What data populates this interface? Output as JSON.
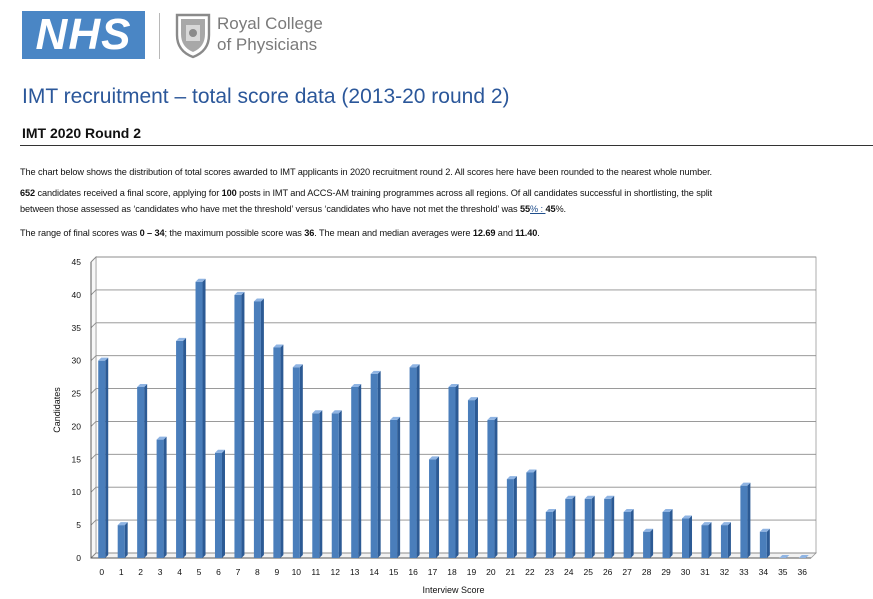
{
  "header": {
    "nhs_logo": "NHS",
    "college_name_line1": "Royal College",
    "college_name_line2": "of Physicians"
  },
  "page_title": "IMT recruitment – total score data (2013-20 round 2)",
  "section_title": "IMT 2020 Round 2",
  "paragraphs": {
    "p1": "The chart below shows the distribution of total scores awarded to IMT applicants in 2020 recruitment round 2.  All scores here have been rounded to the nearest whole number.",
    "p2_candidates": "652",
    "p2_text_a": " candidates received a final score, applying for ",
    "p2_posts": "100",
    "p2_text_b": " posts in IMT and ACCS-AM training programmes across all regions. Of all candidates successful in shortlisting, the split",
    "p2_line2_text": "between those assessed as ‘candidates who have met the threshold’ versus ‘candidates who have not met the threshold’ was ",
    "p2_split_a": "55",
    "p2_split_mid": "% : ",
    "p2_split_b": "45",
    "p2_split_end": "%.",
    "p3_text_a": "The range of final scores was ",
    "p3_range": "0 – 34",
    "p3_text_b": "; the maximum possible score was ",
    "p3_max": "36",
    "p3_text_c": ". The mean and median averages were ",
    "p3_mean": "12.69",
    "p3_text_d": " and ",
    "p3_median": "11.40",
    "p3_text_e": "."
  },
  "chart_data": {
    "type": "bar",
    "xlabel": "Interview Score",
    "ylabel": "Candidates",
    "ylim": [
      0,
      45
    ],
    "yticks": [
      0,
      5,
      10,
      15,
      20,
      25,
      30,
      35,
      40,
      45
    ],
    "grid": true,
    "categories": [
      "0",
      "1",
      "2",
      "3",
      "4",
      "5",
      "6",
      "7",
      "8",
      "9",
      "10",
      "11",
      "12",
      "13",
      "14",
      "15",
      "16",
      "17",
      "18",
      "19",
      "20",
      "21",
      "22",
      "23",
      "24",
      "25",
      "26",
      "27",
      "28",
      "29",
      "30",
      "31",
      "32",
      "33",
      "34",
      "35",
      "36"
    ],
    "values": [
      30,
      5,
      26,
      18,
      33,
      42,
      16,
      40,
      39,
      32,
      29,
      22,
      22,
      26,
      28,
      21,
      29,
      15,
      26,
      24,
      21,
      12,
      13,
      7,
      9,
      9,
      9,
      7,
      4,
      7,
      6,
      5,
      5,
      11,
      4,
      0,
      0
    ],
    "colors": {
      "bar": "#4a7ebb",
      "bar_dark": "#2c5a94",
      "bar_light": "#8fb4e3",
      "grid": "#8c8c8c",
      "wall": "#ffffff"
    }
  }
}
